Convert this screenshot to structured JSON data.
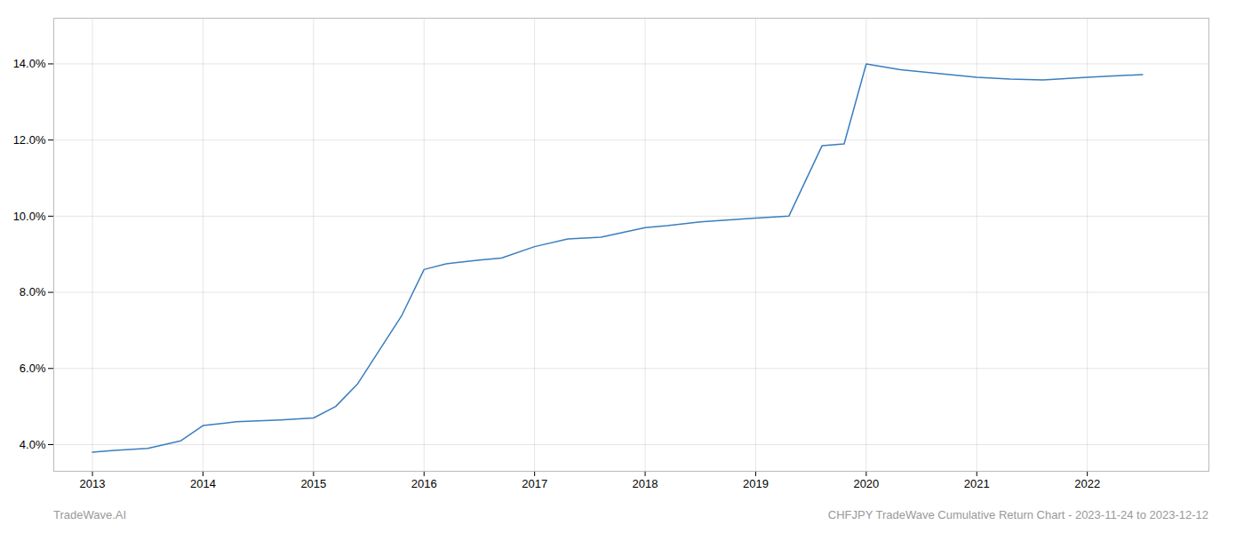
{
  "chart_data": {
    "type": "line",
    "x": [
      2013.0,
      2013.2,
      2013.5,
      2013.8,
      2014.0,
      2014.3,
      2014.7,
      2015.0,
      2015.2,
      2015.4,
      2015.6,
      2015.8,
      2016.0,
      2016.2,
      2016.5,
      2016.7,
      2017.0,
      2017.3,
      2017.6,
      2018.0,
      2018.2,
      2018.5,
      2019.0,
      2019.3,
      2019.6,
      2019.8,
      2020.0,
      2020.3,
      2021.0,
      2021.3,
      2021.6,
      2022.0,
      2022.5
    ],
    "values": [
      3.8,
      3.85,
      3.9,
      4.1,
      4.5,
      4.6,
      4.65,
      4.7,
      5.0,
      5.6,
      6.5,
      7.4,
      8.6,
      8.75,
      8.85,
      8.9,
      9.2,
      9.4,
      9.45,
      9.7,
      9.75,
      9.85,
      9.95,
      10.0,
      11.85,
      11.9,
      14.0,
      13.85,
      13.65,
      13.6,
      13.58,
      13.65,
      13.72
    ],
    "color": "#3a7ebf",
    "xlim": [
      2012.65,
      2023.1
    ],
    "xticks": [
      2013,
      2014,
      2015,
      2016,
      2017,
      2018,
      2019,
      2020,
      2021,
      2022
    ],
    "ylim": [
      3.3,
      15.2
    ],
    "yticks": [
      {
        "value": 4.0,
        "label": "4.0%"
      },
      {
        "value": 6.0,
        "label": "6.0%"
      },
      {
        "value": 8.0,
        "label": "8.0%"
      },
      {
        "value": 10.0,
        "label": "10.0%"
      },
      {
        "value": 12.0,
        "label": "12.0%"
      },
      {
        "value": 14.0,
        "label": "14.0%"
      }
    ],
    "grid": true,
    "annotations": [
      "TradeWave.AI",
      "CHFJPY TradeWave Cumulative Return Chart - 2023-11-24 to 2023-12-12"
    ]
  }
}
